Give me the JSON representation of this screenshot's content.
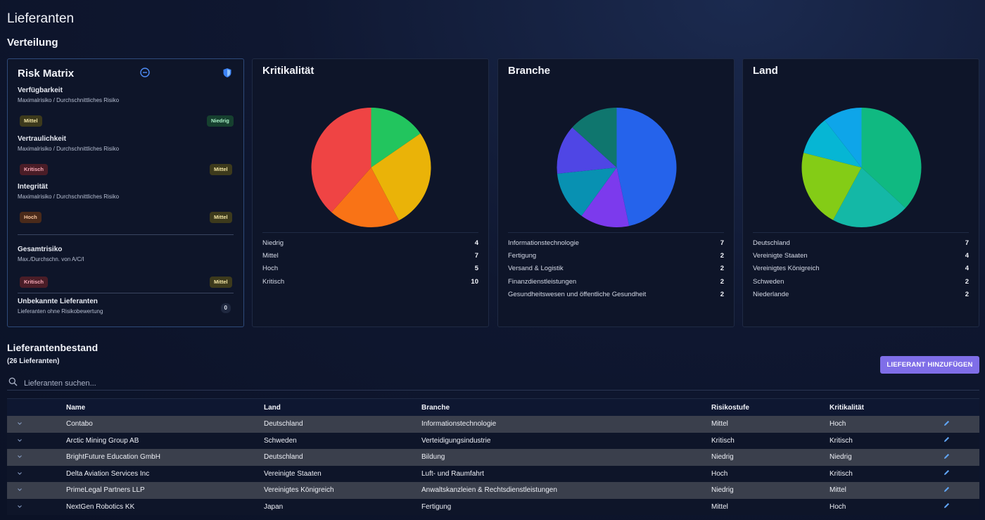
{
  "page": {
    "title": "Lieferanten",
    "section": "Verteilung"
  },
  "risk_matrix": {
    "title": "Risk Matrix",
    "icons": [
      "minus-circle-icon",
      "shield-icon"
    ],
    "items": [
      {
        "title": "Verfügbarkeit",
        "subtitle": "Maximalrisiko / Durchschnittliches Risiko",
        "max": "Mittel",
        "avg": "Niedrig"
      },
      {
        "title": "Vertraulichkeit",
        "subtitle": "Maximalrisiko / Durchschnittliches Risiko",
        "max": "Kritisch",
        "avg": "Mittel"
      },
      {
        "title": "Integrität",
        "subtitle": "Maximalrisiko / Durchschnittliches Risiko",
        "max": "Hoch",
        "avg": "Mittel"
      }
    ],
    "total": {
      "title": "Gesamtrisiko",
      "subtitle": "Max./Durchschn. von A/C/I",
      "max": "Kritisch",
      "avg": "Mittel"
    },
    "unknown": {
      "title": "Unbekannte Lieferanten",
      "subtitle": "Lieferanten ohne Risikobewertung",
      "count": "0"
    }
  },
  "charts": [
    {
      "title": "Kritikalität",
      "chart_data": {
        "type": "pie",
        "slices": [
          {
            "label": "Niedrig",
            "value": 4,
            "color": "#22c55e"
          },
          {
            "label": "Mittel",
            "value": 7,
            "color": "#eab308"
          },
          {
            "label": "Hoch",
            "value": 5,
            "color": "#f97316"
          },
          {
            "label": "Kritisch",
            "value": 10,
            "color": "#ef4444"
          }
        ]
      },
      "legend": [
        {
          "label": "Niedrig",
          "value": "4"
        },
        {
          "label": "Mittel",
          "value": "7"
        },
        {
          "label": "Hoch",
          "value": "5"
        },
        {
          "label": "Kritisch",
          "value": "10"
        }
      ]
    },
    {
      "title": "Branche",
      "chart_data": {
        "type": "pie",
        "slices": [
          {
            "label": "Informationstechnologie",
            "value": 7,
            "color": "#2563eb"
          },
          {
            "label": "Fertigung",
            "value": 2,
            "color": "#7c3aed"
          },
          {
            "label": "Versand & Logistik",
            "value": 2,
            "color": "#0891b2"
          },
          {
            "label": "Finanzdienstleistungen",
            "value": 2,
            "color": "#4f46e5"
          },
          {
            "label": "Gesundheitswesen und öffentliche Gesundheit",
            "value": 2,
            "color": "#0f766e"
          }
        ]
      },
      "legend": [
        {
          "label": "Informationstechnologie",
          "value": "7"
        },
        {
          "label": "Fertigung",
          "value": "2"
        },
        {
          "label": "Versand & Logistik",
          "value": "2"
        },
        {
          "label": "Finanzdienstleistungen",
          "value": "2"
        },
        {
          "label": "Gesundheitswesen und öffentliche Gesundheit",
          "value": "2"
        }
      ]
    },
    {
      "title": "Land",
      "chart_data": {
        "type": "pie",
        "slices": [
          {
            "label": "Deutschland",
            "value": 7,
            "color": "#10b981"
          },
          {
            "label": "Vereinigte Staaten",
            "value": 4,
            "color": "#14b8a6"
          },
          {
            "label": "Vereinigtes Königreich",
            "value": 4,
            "color": "#84cc16"
          },
          {
            "label": "Schweden",
            "value": 2,
            "color": "#06b6d4"
          },
          {
            "label": "Niederlande",
            "value": 2,
            "color": "#0ea5e9"
          }
        ]
      },
      "legend": [
        {
          "label": "Deutschland",
          "value": "7"
        },
        {
          "label": "Vereinigte Staaten",
          "value": "4"
        },
        {
          "label": "Vereinigtes Königreich",
          "value": "4"
        },
        {
          "label": "Schweden",
          "value": "2"
        },
        {
          "label": "Niederlande",
          "value": "2"
        }
      ]
    }
  ],
  "inventory": {
    "title": "Lieferantenbestand",
    "count": "(26 Lieferanten)",
    "add_button": "LIEFERANT HINZUFÜGEN",
    "search_placeholder": "Lieferanten suchen...",
    "columns": [
      "Name",
      "Land",
      "Branche",
      "Risikostufe",
      "Kritikalität"
    ],
    "rows": [
      {
        "name": "Contabo",
        "land": "Deutschland",
        "branche": "Informationstechnologie",
        "risiko": "Mittel",
        "krit": "Hoch"
      },
      {
        "name": "Arctic Mining Group AB",
        "land": "Schweden",
        "branche": "Verteidigungsindustrie",
        "risiko": "Kritisch",
        "krit": "Kritisch"
      },
      {
        "name": "BrightFuture Education GmbH",
        "land": "Deutschland",
        "branche": "Bildung",
        "risiko": "Niedrig",
        "krit": "Niedrig"
      },
      {
        "name": "Delta Aviation Services Inc",
        "land": "Vereinigte Staaten",
        "branche": "Luft- und Raumfahrt",
        "risiko": "Hoch",
        "krit": "Kritisch"
      },
      {
        "name": "PrimeLegal Partners LLP",
        "land": "Vereinigtes Königreich",
        "branche": "Anwaltskanzleien & Rechtsdienstleistungen",
        "risiko": "Niedrig",
        "krit": "Mittel"
      },
      {
        "name": "NextGen Robotics KK",
        "land": "Japan",
        "branche": "Fertigung",
        "risiko": "Mittel",
        "krit": "Hoch"
      }
    ]
  }
}
